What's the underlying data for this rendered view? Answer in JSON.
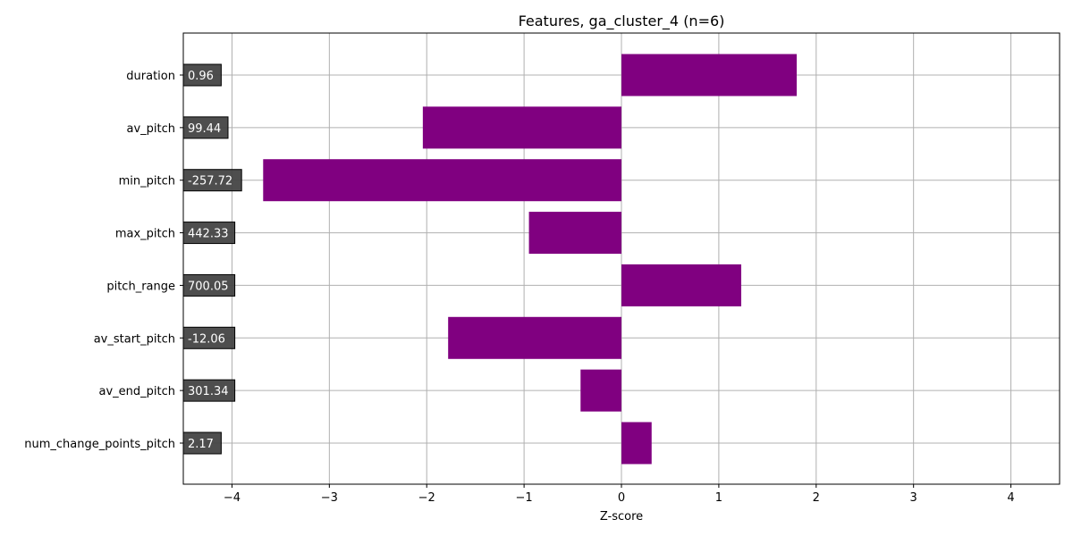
{
  "chart_data": {
    "type": "bar",
    "orientation": "horizontal",
    "title": "Features, ga_cluster_4 (n=6)",
    "xlabel": "Z-score",
    "ylabel": "",
    "xlim": [
      -4.5,
      4.5
    ],
    "xticks": [
      -4,
      -3,
      -2,
      -1,
      0,
      1,
      2,
      3,
      4
    ],
    "xtick_labels": [
      "−4",
      "−3",
      "−2",
      "−1",
      "0",
      "1",
      "2",
      "3",
      "4"
    ],
    "grid": true,
    "bar_color": "#800080",
    "label_box_color": "#444444",
    "categories": [
      "duration",
      "av_pitch",
      "min_pitch",
      "max_pitch",
      "pitch_range",
      "av_start_pitch",
      "av_end_pitch",
      "num_change_points_pitch"
    ],
    "values": [
      1.8,
      -2.04,
      -3.68,
      -0.95,
      1.23,
      -1.78,
      -0.42,
      0.31
    ],
    "value_labels": [
      "0.96",
      "99.44",
      "-257.72",
      "442.33",
      "700.05",
      "-12.06",
      "301.34",
      "2.17"
    ]
  }
}
